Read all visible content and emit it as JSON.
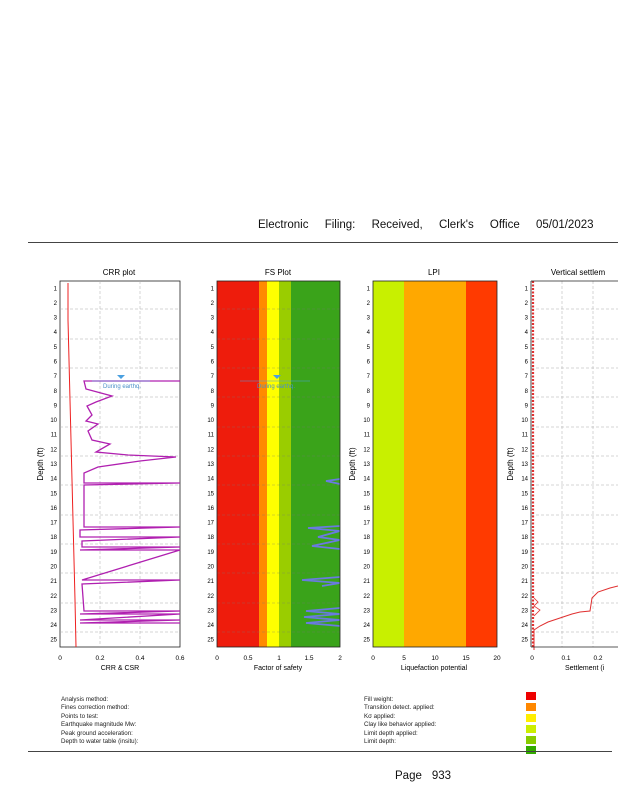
{
  "header": {
    "words": [
      "Electronic",
      "Filing:",
      "Received,",
      "Clerk's",
      "Office",
      "05/01/2023"
    ]
  },
  "plots": [
    {
      "title": "CRR plot",
      "xlabel": "CRR & CSR",
      "xticks": [
        "0",
        "0.2",
        "0.4",
        "0.6"
      ],
      "ylabel": "Depth (ft)",
      "annotation": "During earthq."
    },
    {
      "title": "FS Plot",
      "xlabel": "Factor of safety",
      "xticks": [
        "0",
        "0.5",
        "1",
        "1.5",
        "2"
      ],
      "ylabel": "Depth (ft)",
      "annotation": "During earthq."
    },
    {
      "title": "LPI",
      "xlabel": "Liquefaction potential",
      "xticks": [
        "0",
        "5",
        "10",
        "15",
        "20"
      ],
      "ylabel": "Depth (ft)"
    },
    {
      "title": "Vertical settlem",
      "xlabel": "Settlement (i",
      "xticks": [
        "0",
        "0.1",
        "0.2"
      ],
      "ylabel": "Depth (ft)"
    }
  ],
  "depth_ticks": [
    "1",
    "2",
    "3",
    "4",
    "5",
    "6",
    "7",
    "8",
    "9",
    "10",
    "11",
    "12",
    "13",
    "14",
    "15",
    "16",
    "17",
    "18",
    "19",
    "20",
    "21",
    "22",
    "23",
    "24",
    "25"
  ],
  "fs_zone_colors": [
    "#ee1c0c",
    "#ff8a00",
    "#ffff00",
    "#9acd00",
    "#3aa31a"
  ],
  "lpi_zone_colors": [
    "#c8f000",
    "#ffa800",
    "#ff3a00"
  ],
  "curve_colors": {
    "crr": "#b020b0",
    "csr": "#ee2020",
    "fs": "#6a7ae0",
    "settlement": "#e03030"
  },
  "legend_left": [
    "Analysis method:",
    "Fines correction method:",
    "Points to test:",
    "Earthquake magnitude Mw:",
    "Peak ground acceleration:",
    "Depth to water table (insitu):"
  ],
  "legend_right": [
    "Fill weight:",
    "Transition detect. applied:",
    "Kσ applied:",
    "Clay like behavior applied:",
    "Limit depth applied:",
    "Limit depth:"
  ],
  "legend_swatch_colors": [
    "#ee0000",
    "#ff8800",
    "#ffee00",
    "#ccee00",
    "#88cc00",
    "#33aa00"
  ],
  "footer": {
    "page_label": "Page",
    "page_number": "933"
  }
}
